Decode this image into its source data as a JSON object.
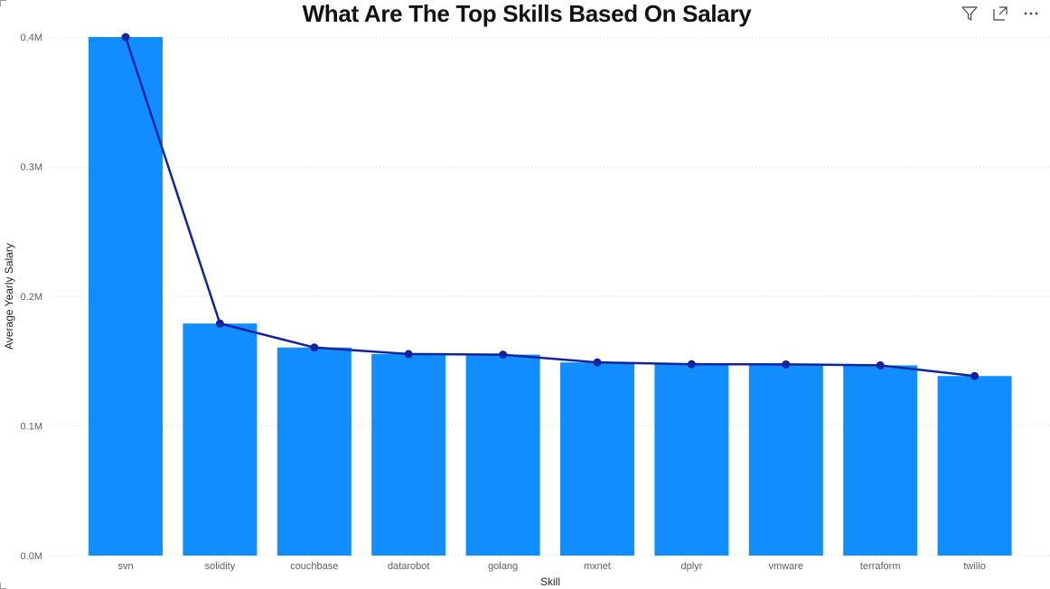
{
  "header": {
    "title": "What Are The Top Skills Based On Salary",
    "icons": [
      "filter-icon",
      "focus-mode-icon",
      "more-options-icon"
    ]
  },
  "colors": {
    "bar": "#118DFF",
    "line": "#12239E",
    "grid": "#d9d9d9"
  },
  "chart_data": {
    "type": "bar",
    "title": "What Are The Top Skills Based On Salary",
    "xlabel": "Skill",
    "ylabel": "Average Yearly Salary",
    "categories": [
      "svn",
      "solidity",
      "couchbase",
      "datarobot",
      "golang",
      "mxnet",
      "dplyr",
      "vmware",
      "terraform",
      "twilio"
    ],
    "values": [
      400000,
      179000,
      160515,
      155486,
      155000,
      149000,
      147633,
      147500,
      146734,
      138500
    ],
    "line_values": [
      400000,
      179000,
      160515,
      155486,
      155000,
      149000,
      147633,
      147500,
      146734,
      138500
    ],
    "ylim": [
      0,
      400000
    ],
    "yticks": [
      0,
      100000,
      200000,
      300000,
      400000
    ],
    "ytick_labels": [
      "0.0M",
      "0.1M",
      "0.2M",
      "0.3M",
      "0.4M"
    ],
    "grid": true,
    "legend": "none"
  }
}
